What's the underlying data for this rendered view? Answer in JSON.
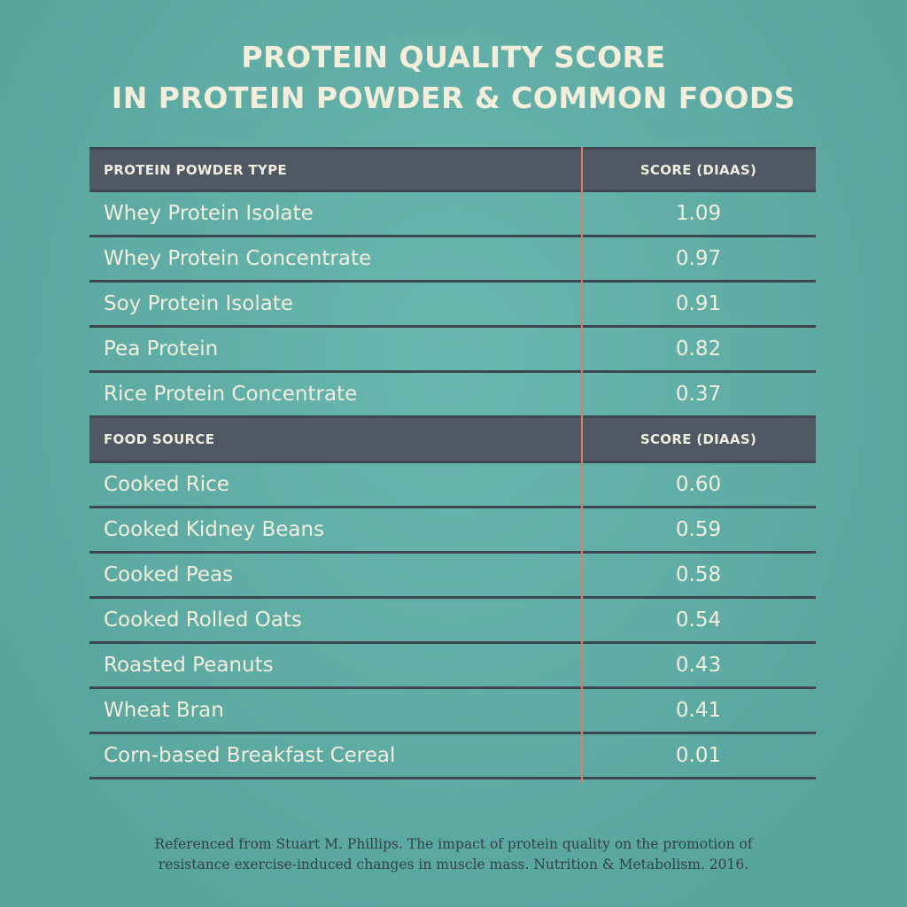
{
  "title": {
    "line1": "PROTEIN QUALITY SCORE",
    "line2": "IN PROTEIN POWDER & COMMON FOODS"
  },
  "chart_data": {
    "type": "table",
    "sections": [
      {
        "header": {
          "name": "PROTEIN POWDER TYPE",
          "score": "SCORE (DIAAS)"
        },
        "rows": [
          {
            "name": "Whey Protein Isolate",
            "score": "1.09"
          },
          {
            "name": "Whey Protein Concentrate",
            "score": "0.97"
          },
          {
            "name": "Soy Protein Isolate",
            "score": "0.91"
          },
          {
            "name": "Pea Protein",
            "score": "0.82"
          },
          {
            "name": "Rice Protein Concentrate",
            "score": "0.37"
          }
        ]
      },
      {
        "header": {
          "name": "FOOD SOURCE",
          "score": "SCORE (DIAAS)"
        },
        "rows": [
          {
            "name": "Cooked Rice",
            "score": "0.60"
          },
          {
            "name": "Cooked Kidney Beans",
            "score": "0.59"
          },
          {
            "name": "Cooked Peas",
            "score": "0.58"
          },
          {
            "name": "Cooked Rolled Oats",
            "score": "0.54"
          },
          {
            "name": "Roasted Peanuts",
            "score": "0.43"
          },
          {
            "name": "Wheat Bran",
            "score": "0.41"
          },
          {
            "name": "Corn-based Breakfast Cereal",
            "score": "0.01"
          }
        ]
      }
    ]
  },
  "footer": {
    "line1": "Referenced from Stuart M. Phillips. The impact of protein quality on the promotion of",
    "line2": "resistance exercise-induced changes in muscle mass. Nutrition & Metabolism. 2016."
  },
  "colors": {
    "background": "#5fb3ab",
    "header_bg": "#4f5863",
    "divider": "#e07a6e",
    "text_light": "#f3eedb"
  }
}
